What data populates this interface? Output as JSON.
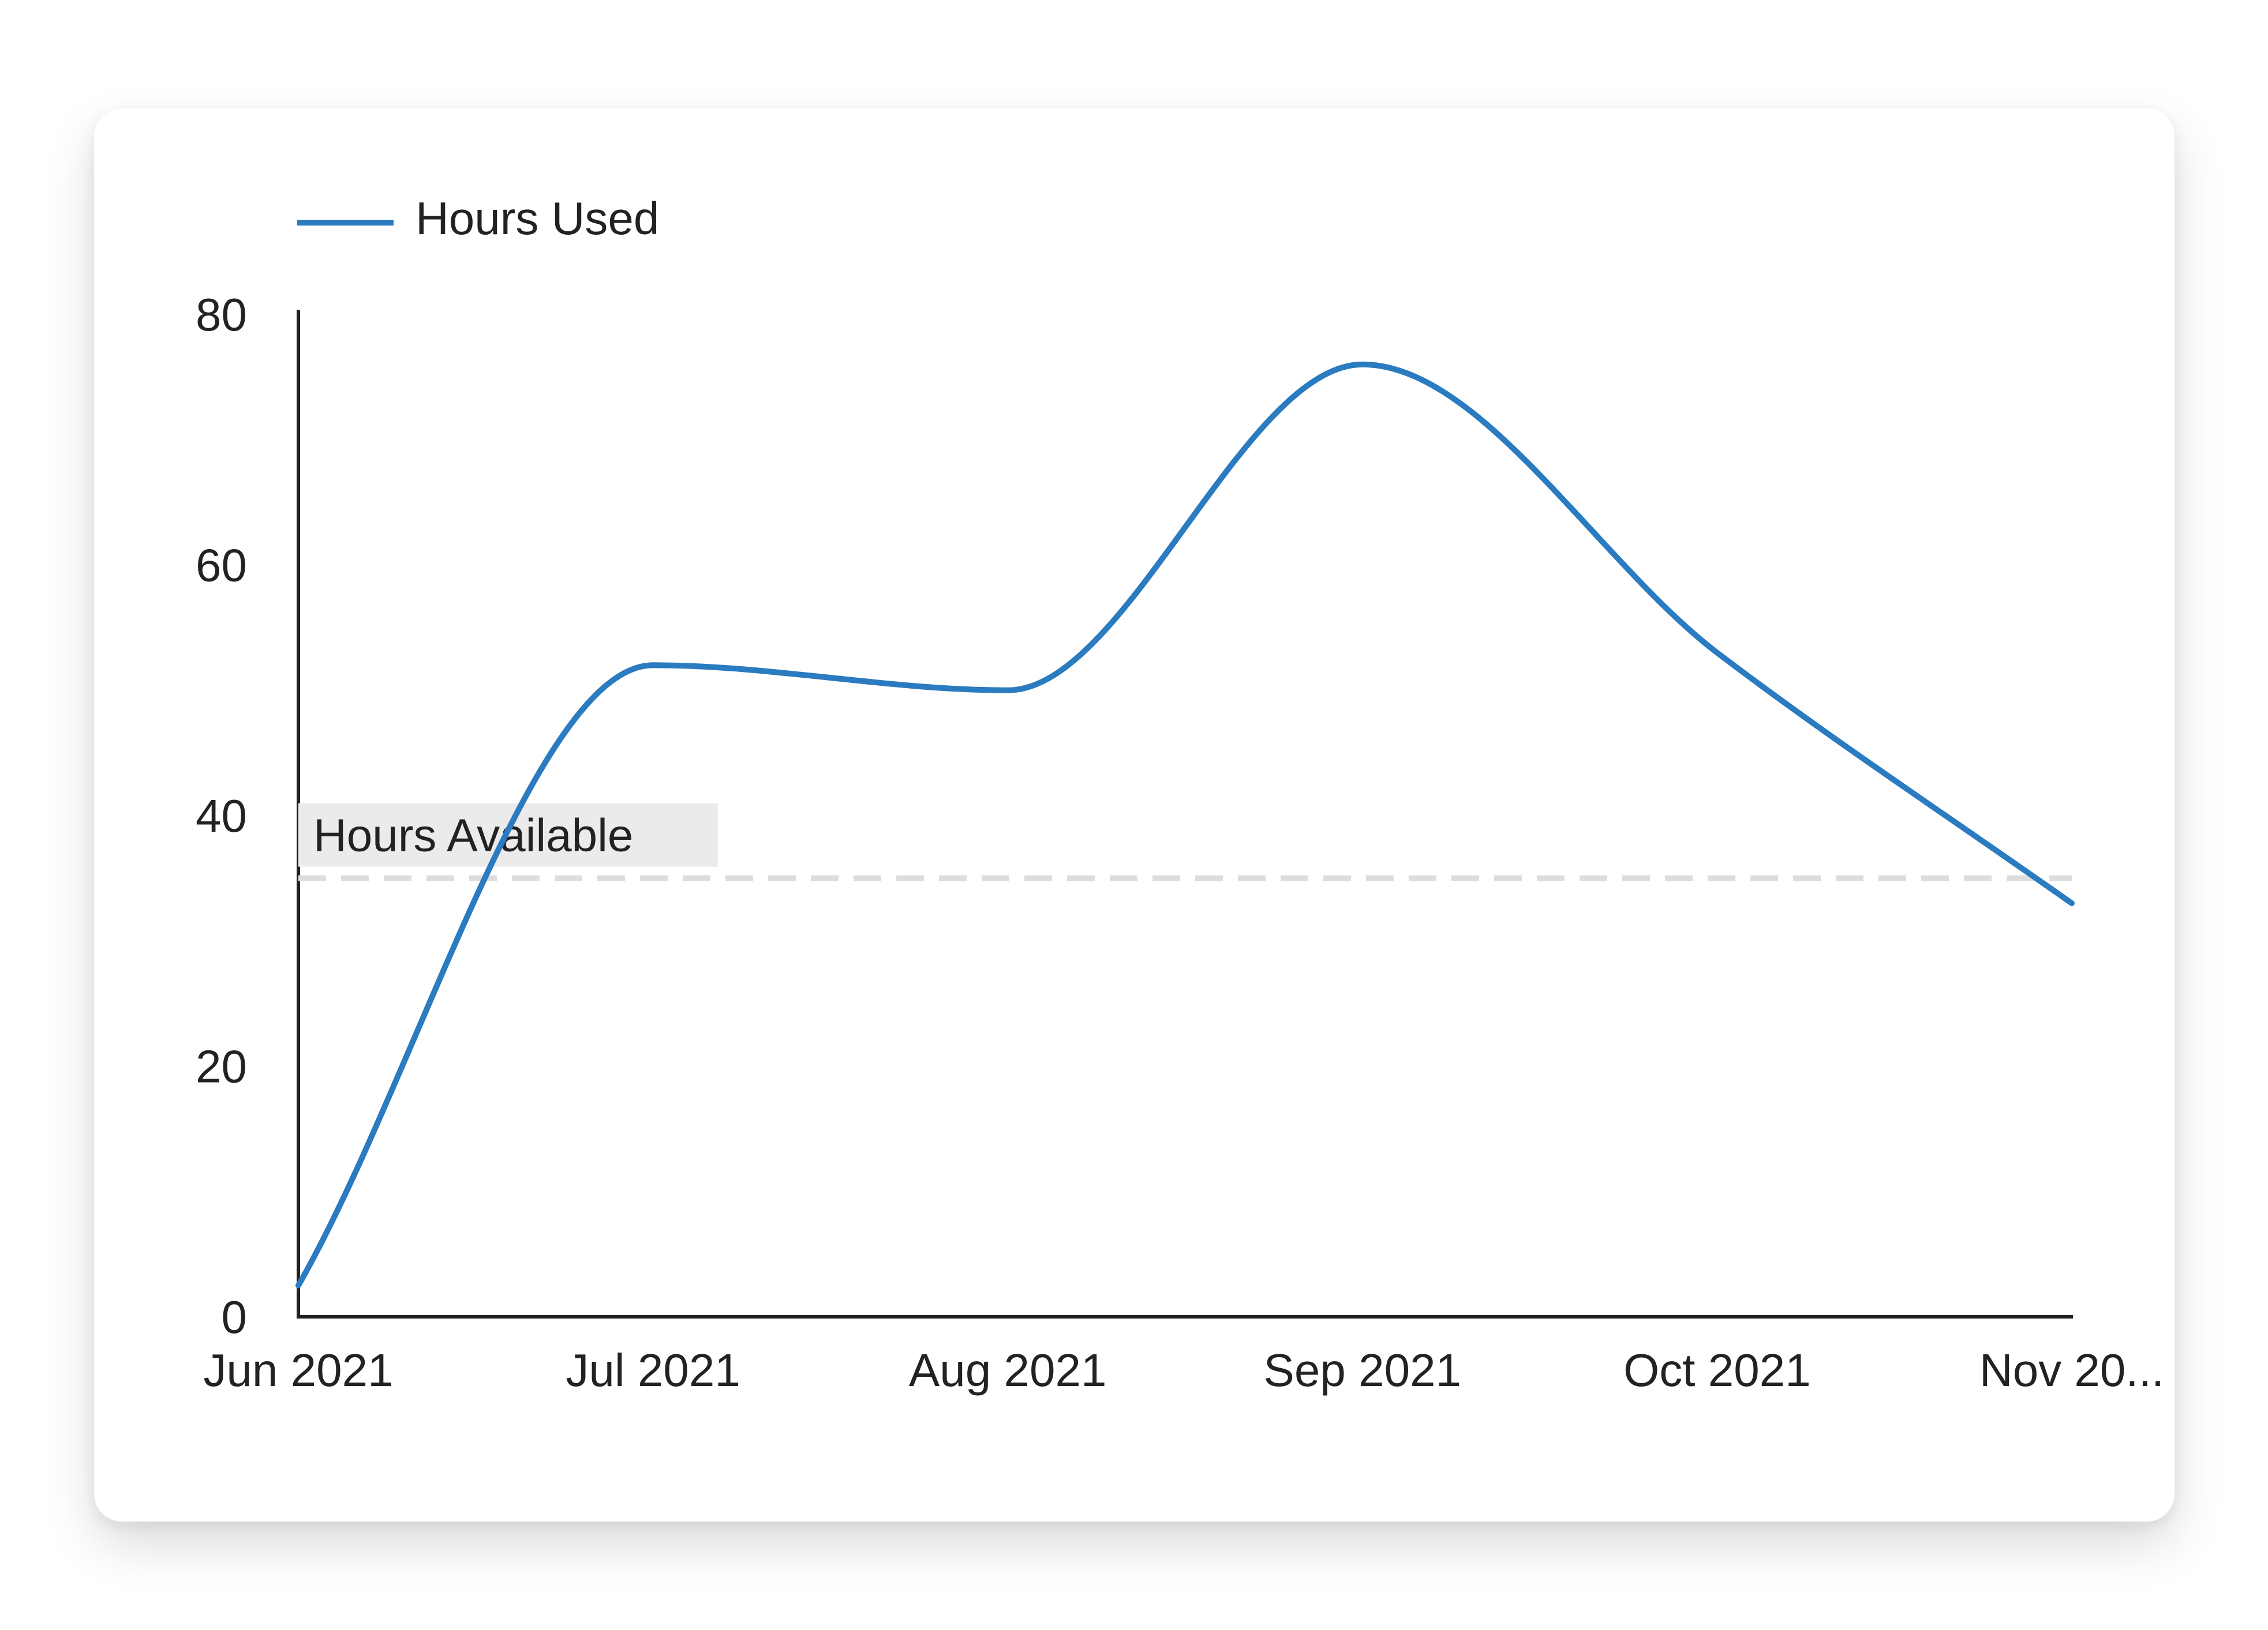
{
  "chart_data": {
    "type": "line",
    "legend": {
      "position": "top-left"
    },
    "x_ticks": [
      "Jun 2021",
      "Jul 2021",
      "Aug 2021",
      "Sep 2021",
      "Oct 2021",
      "Nov 20..."
    ],
    "ylim": [
      0,
      80
    ],
    "y_ticks": [
      "0",
      "20",
      "40",
      "60",
      "80"
    ],
    "grid": false,
    "series": [
      {
        "name": "Hours Used",
        "color": "#2a7bc0",
        "smooth": true,
        "x": [
          "Jun 2021",
          "Jul 2021",
          "Aug 2021",
          "Sep 2021",
          "Oct 2021",
          "Nov 2021"
        ],
        "values": [
          2.5,
          52,
          50,
          76,
          53,
          33
        ]
      }
    ],
    "reference_lines": [
      {
        "label": "Hours Available",
        "value": 35,
        "color": "#dddddd",
        "style": "dashed"
      }
    ]
  }
}
